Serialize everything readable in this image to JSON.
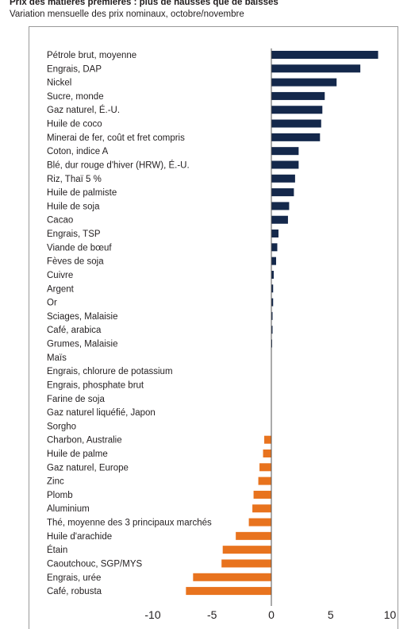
{
  "title": "Prix des matières premières : plus de hausses que de baisses",
  "subtitle": "Variation mensuelle des prix nominaux, octobre/novembre",
  "colors": {
    "positive": "#14284b",
    "negative": "#e8731e",
    "axis": "#555555",
    "frame": "#9a9a9a"
  },
  "chart_data": {
    "type": "bar",
    "orientation": "horizontal",
    "title": "Prix des matières premières : plus de hausses que de baisses",
    "subtitle": "Variation mensuelle des prix nominaux, octobre/novembre",
    "xlabel": "",
    "ylabel": "",
    "xlim": [
      -12,
      11
    ],
    "xticks": [
      -10,
      -5,
      0,
      5,
      10
    ],
    "tick_labels": [
      "-10",
      "-5",
      "0",
      "5",
      "10"
    ],
    "grid": false,
    "categories": [
      "Pétrole brut, moyenne",
      "Engrais, DAP",
      "Nickel",
      "Sucre, monde",
      "Gaz naturel, É.-U.",
      "Huile de coco",
      "Minerai de fer, coût et fret compris",
      "Coton, indice A",
      "Blé, dur rouge d'hiver (HRW), É.-U.",
      "Riz, Thaï 5 %",
      "Huile de palmiste",
      "Huile de soja",
      "Cacao",
      "Engrais, TSP",
      "Viande de bœuf",
      "Fèves de soja",
      "Cuivre",
      "Argent",
      "Or",
      "Sciages, Malaisie",
      "Café, arabica",
      "Grumes, Malaisie",
      "Maïs",
      "Engrais, chlorure de potassium",
      "Engrais, phosphate brut",
      "Farine de soja",
      "Gaz naturel liquéfié, Japon",
      "Sorgho",
      "Charbon, Australie",
      "Huile de palme",
      "Gaz naturel, Europe",
      "Zinc",
      "Plomb",
      "Aluminium",
      "Thé, moyenne des 3 principaux marchés",
      "Huile d'arachide",
      "Étain",
      "Caoutchouc, SGP/MYS",
      "Engrais, urée",
      "Café, robusta"
    ],
    "values": [
      9.0,
      7.5,
      5.5,
      4.5,
      4.3,
      4.2,
      4.1,
      2.3,
      2.3,
      2.0,
      1.9,
      1.5,
      1.4,
      0.6,
      0.5,
      0.4,
      0.2,
      0.15,
      0.15,
      0.1,
      0.1,
      0.05,
      0.0,
      0.0,
      0.0,
      0.0,
      0.0,
      0.0,
      -0.6,
      -0.7,
      -1.0,
      -1.1,
      -1.5,
      -1.6,
      -1.9,
      -3.0,
      -4.1,
      -4.2,
      -6.6,
      -7.2
    ]
  }
}
